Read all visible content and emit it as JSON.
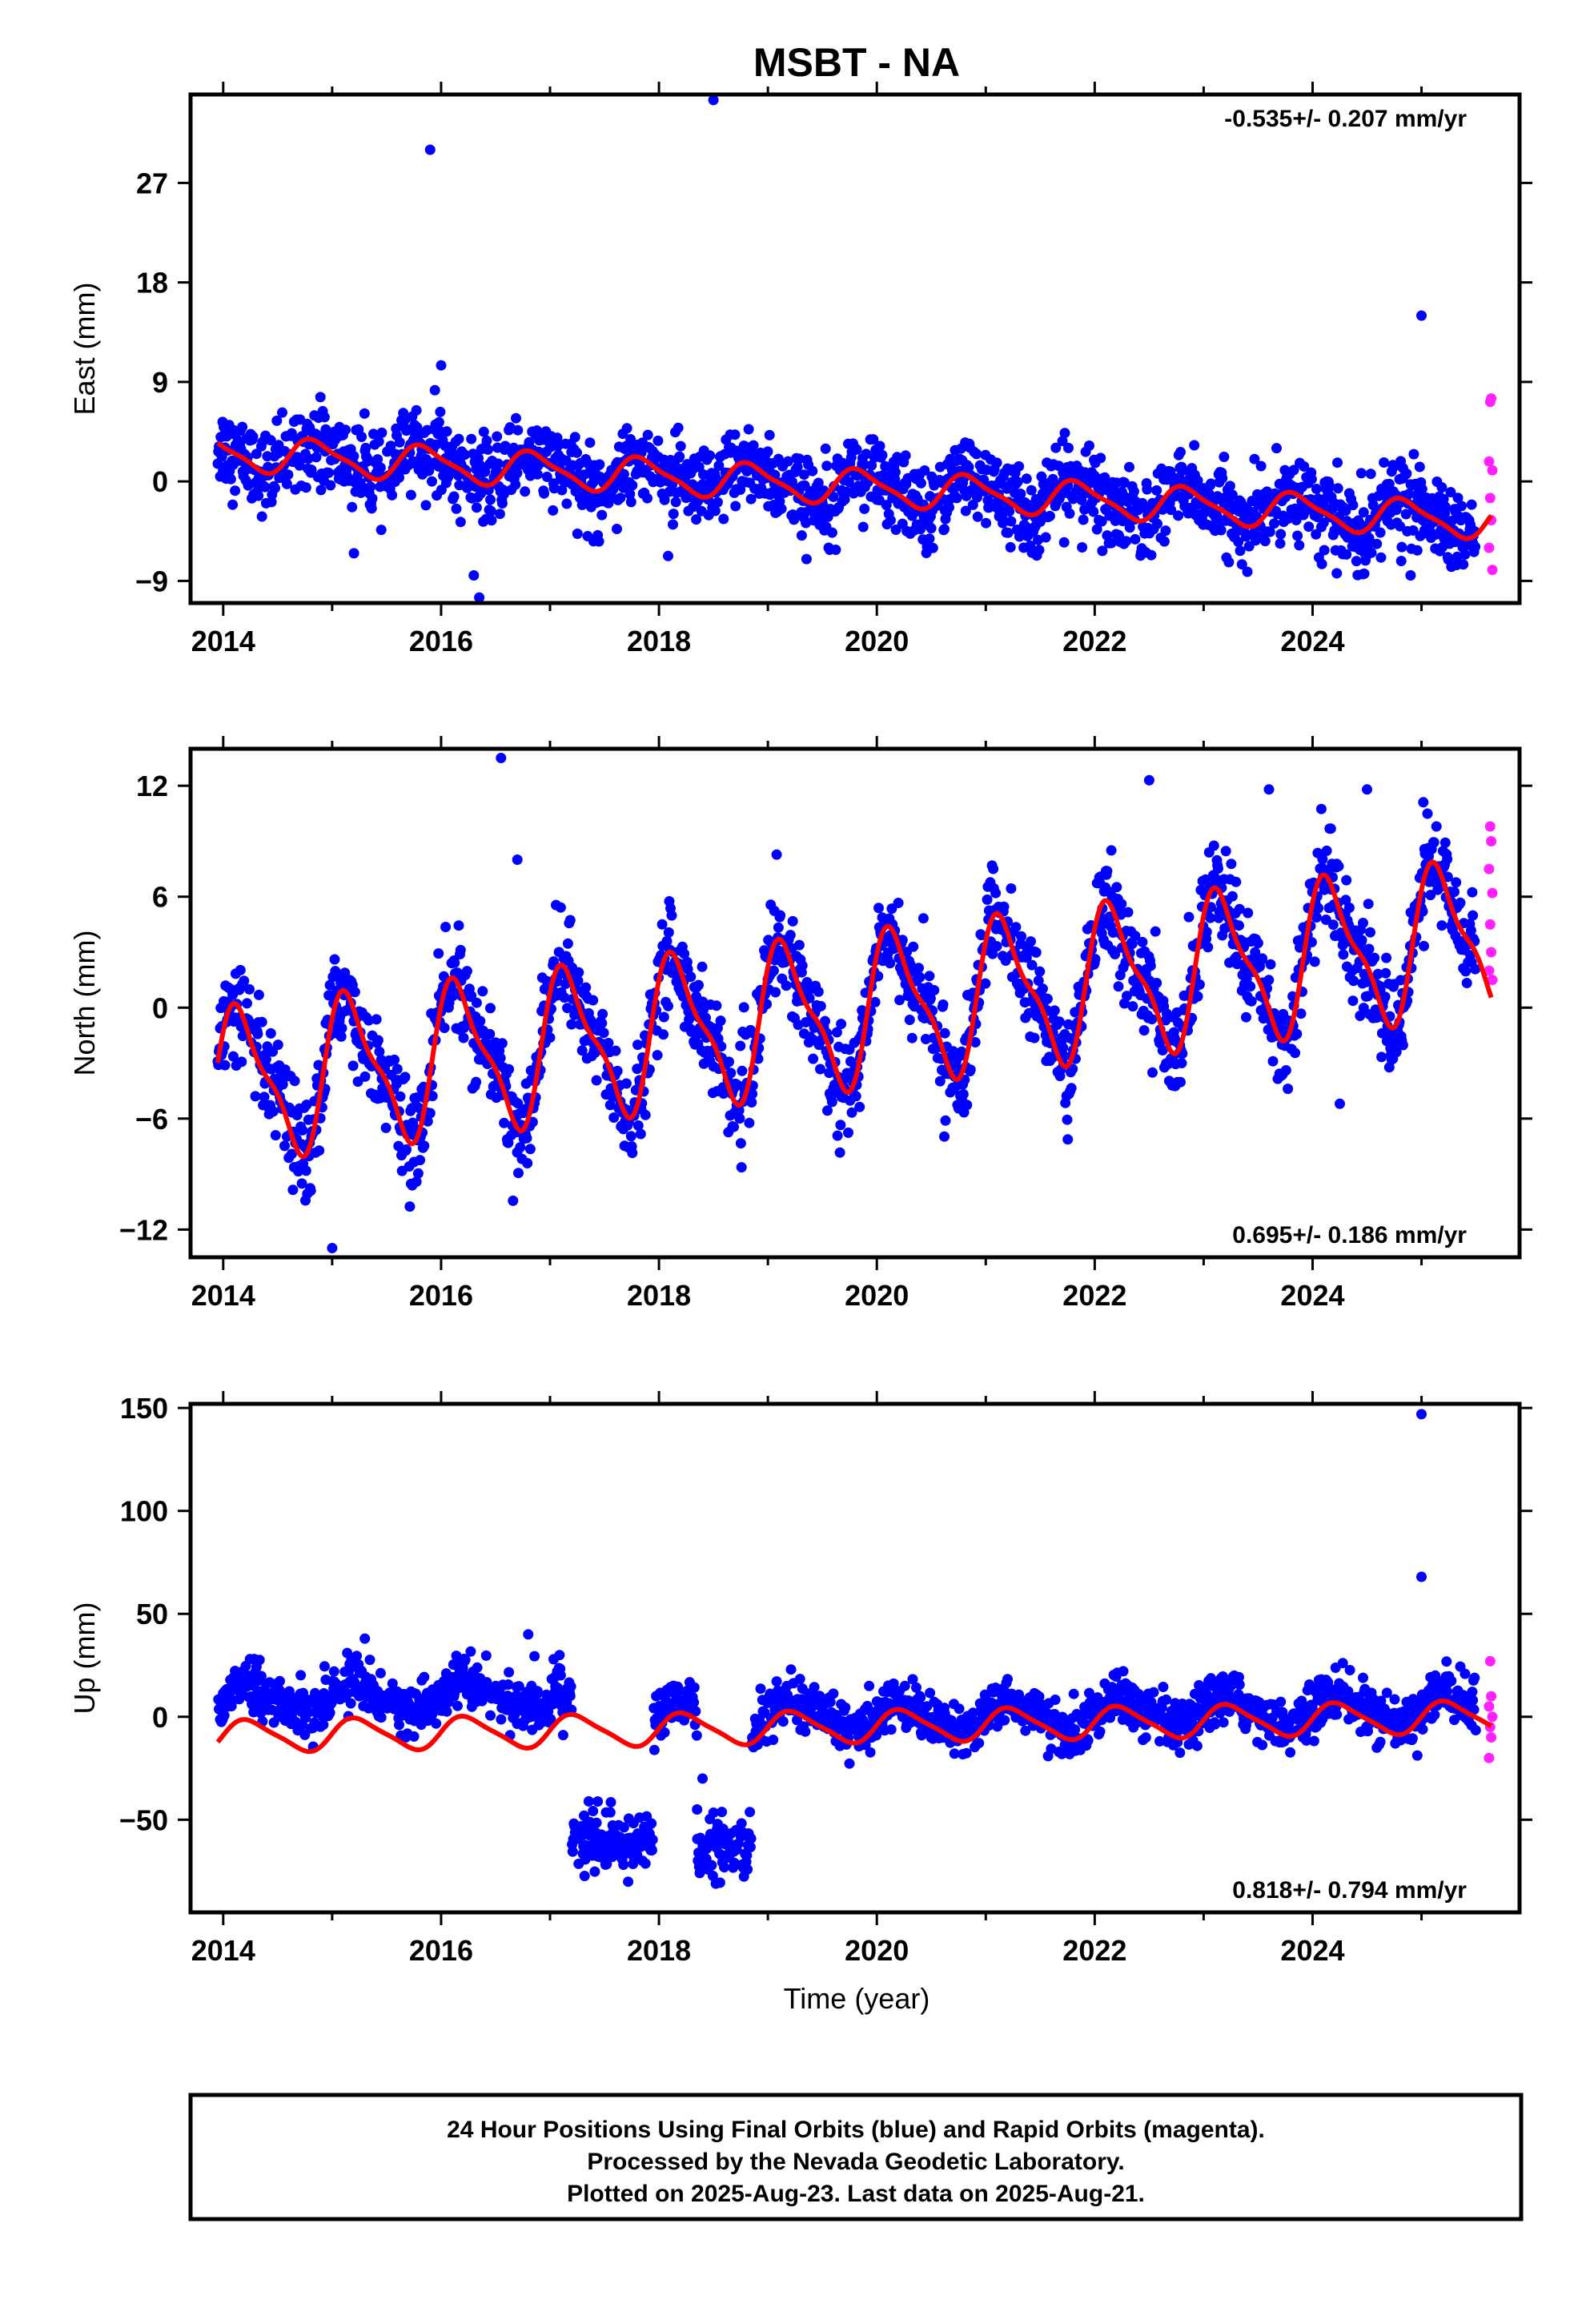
{
  "title": "MSBT - NA",
  "xlabel": "Time (year)",
  "footer": {
    "lines": [
      "24 Hour Positions Using Final Orbits (blue) and Rapid Orbits (magenta).",
      "Processed by the Nevada Geodetic Laboratory.",
      "Plotted on 2025-Aug-23. Last data on 2025-Aug-21."
    ]
  },
  "colors": {
    "final": "#0000ff",
    "rapid": "#ff22ff",
    "model": "#ff0000",
    "frame": "#000000"
  },
  "chart_data": [
    {
      "type": "scatter",
      "name": "east",
      "ylabel": "East (mm)",
      "rate_label": "-0.535+/- 0.207 mm/yr",
      "xlim": [
        2013.7,
        2025.9
      ],
      "ylim": [
        -11,
        35
      ],
      "xticks": [
        "2014",
        "2016",
        "2018",
        "2020",
        "2022",
        "2024"
      ],
      "yticks": [
        "-9",
        "0",
        "9",
        "18",
        "27"
      ],
      "data_start": 2013.95,
      "final_end": 2025.5,
      "rapid_end": 2025.64,
      "trend": {
        "offset_2014": 2.6,
        "rate_mm_per_yr": -0.535
      },
      "seasonal": {
        "annual_amp": 1.5,
        "annual_phase": 2.5,
        "semiannual_amp": 0.4,
        "noise_sd": 1.8
      },
      "outliers": [
        [
          2015.9,
          30.0
        ],
        [
          2016.0,
          10.5
        ],
        [
          2018.5,
          34.5
        ],
        [
          2016.35,
          -10.5
        ],
        [
          2016.3,
          -8.5
        ],
        [
          2025.0,
          15.0
        ],
        [
          2015.2,
          -6.5
        ],
        [
          2024.9,
          -8.5
        ]
      ],
      "rapid_points": [
        [
          2025.63,
          7.2
        ],
        [
          2025.64,
          7.5
        ],
        [
          2025.62,
          1.8
        ],
        [
          2025.65,
          1.0
        ],
        [
          2025.63,
          -1.5
        ],
        [
          2025.64,
          -3.5
        ],
        [
          2025.62,
          -6.0
        ],
        [
          2025.65,
          -8.0
        ]
      ]
    },
    {
      "type": "scatter",
      "name": "north",
      "ylabel": "North (mm)",
      "rate_label": "0.695+/- 0.186 mm/yr",
      "xlim": [
        2013.7,
        2025.9
      ],
      "ylim": [
        -13.5,
        14
      ],
      "xticks": [
        "2014",
        "2016",
        "2018",
        "2020",
        "2022",
        "2024"
      ],
      "yticks": [
        "-12",
        "-6",
        "0",
        "6",
        "12"
      ],
      "data_start": 2013.95,
      "final_end": 2025.5,
      "rapid_end": 2025.64,
      "trend": {
        "offset_2014": -4.2,
        "rate_mm_per_yr": 0.695
      },
      "seasonal": {
        "annual_amp": 3.8,
        "annual_phase": 0.52,
        "semiannual_amp": 1.2,
        "noise_sd": 1.3
      },
      "outliers": [
        [
          2016.55,
          13.5
        ],
        [
          2016.7,
          8.0
        ],
        [
          2015.0,
          -13.0
        ],
        [
          2024.25,
          -5.2
        ],
        [
          2022.5,
          12.3
        ],
        [
          2023.6,
          11.8
        ],
        [
          2024.5,
          11.8
        ]
      ],
      "rapid_points": [
        [
          2025.63,
          9.8
        ],
        [
          2025.64,
          9.0
        ],
        [
          2025.62,
          7.5
        ],
        [
          2025.65,
          6.2
        ],
        [
          2025.63,
          4.5
        ],
        [
          2025.64,
          3.0
        ],
        [
          2025.62,
          2.0
        ],
        [
          2025.65,
          1.5
        ]
      ]
    },
    {
      "type": "scatter",
      "name": "up",
      "ylabel": "Up (mm)",
      "rate_label": "0.818+/- 0.794 mm/yr",
      "xlim": [
        2013.7,
        2025.9
      ],
      "ylim": [
        -95,
        152
      ],
      "xticks": [
        "2014",
        "2016",
        "2018",
        "2020",
        "2022",
        "2024"
      ],
      "yticks": [
        "-50",
        "0",
        "50",
        "100",
        "150"
      ],
      "data_start": 2013.95,
      "final_end": 2025.5,
      "rapid_end": 2025.64,
      "trend": {
        "offset_2014": -9.5,
        "rate_mm_per_yr": 0.818
      },
      "seasonal": {
        "annual_amp": 7.5,
        "annual_phase": 0.05,
        "semiannual_amp": 1.5,
        "noise_sd": 6.0
      },
      "offset_clusters": [
        [
          2017.2,
          2017.95,
          -68,
          8
        ],
        [
          2018.35,
          2018.85,
          -70,
          8
        ]
      ],
      "outliers": [
        [
          2025.0,
          147.0
        ],
        [
          2025.0,
          68.0
        ],
        [
          2016.8,
          40.0
        ],
        [
          2015.3,
          38.0
        ],
        [
          2018.35,
          -45.0
        ],
        [
          2018.4,
          -30.0
        ]
      ],
      "rapid_points": [
        [
          2025.63,
          27.0
        ],
        [
          2025.64,
          10.0
        ],
        [
          2025.62,
          5.0
        ],
        [
          2025.65,
          0.0
        ],
        [
          2025.63,
          -5.0
        ],
        [
          2025.64,
          -10.0
        ],
        [
          2025.62,
          -20.0
        ]
      ]
    }
  ]
}
